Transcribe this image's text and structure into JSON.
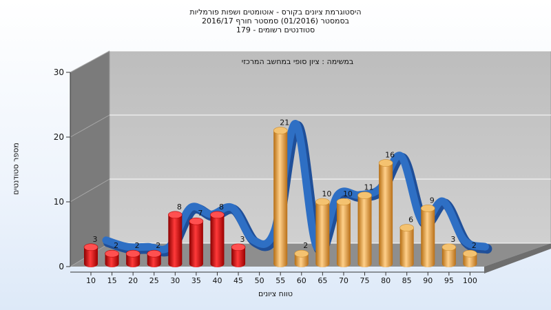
{
  "chart_data": {
    "type": "bar",
    "title_lines": [
      "היסטוגרמת ציונים בקורס - אוטומטים ושפות פורמליות",
      "בסמסטר  (01/2016)  סמסטר חורף 2016/17",
      "סטודנטים רשומים - 179"
    ],
    "annotation": "במשימה : ציון סופי במחשב המרכזי",
    "xlabel": "טווח ציונים",
    "ylabel": "מספר סטודנטים",
    "categories": [
      "10",
      "15",
      "20",
      "25",
      "30",
      "35",
      "40",
      "45",
      "50",
      "55",
      "60",
      "65",
      "70",
      "75",
      "80",
      "85",
      "90",
      "95",
      "100"
    ],
    "values": [
      3,
      2,
      2,
      2,
      8,
      7,
      8,
      3,
      null,
      21,
      2,
      10,
      10,
      11,
      16,
      6,
      9,
      3,
      2
    ],
    "y_ticks": [
      0,
      10,
      20,
      30
    ],
    "ylim": [
      0,
      30
    ],
    "bar_colors": {
      "fail": "#e02020",
      "pass": "#e8a33a"
    },
    "ribbon_color": "#2e6fc4",
    "grid": true,
    "style": "3d"
  }
}
